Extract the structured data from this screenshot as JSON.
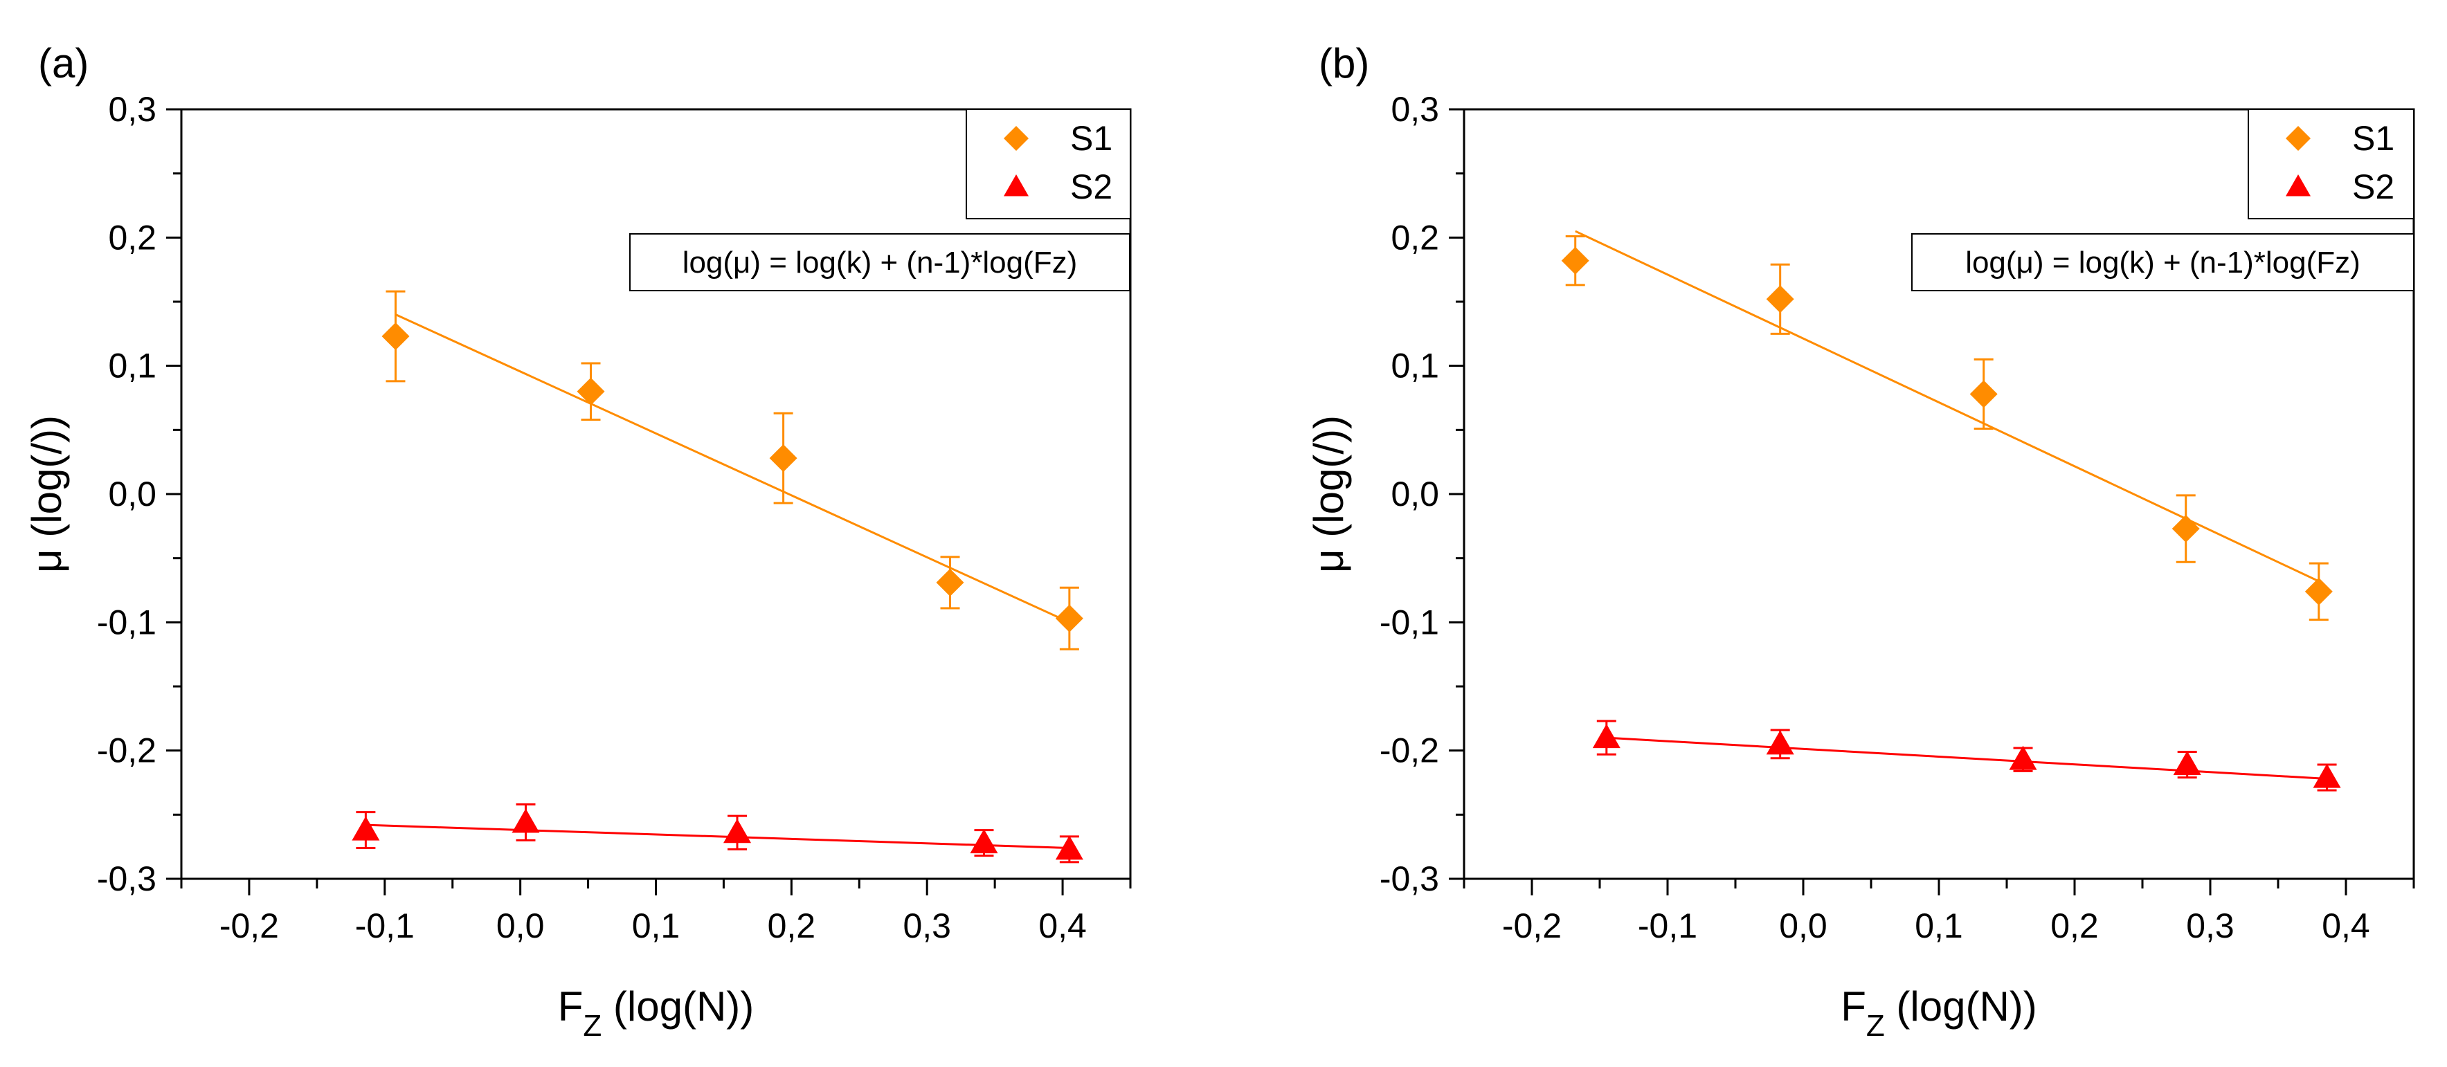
{
  "figure": {
    "panels": [
      "(a)",
      "(b)"
    ]
  },
  "chart_data": [
    {
      "type": "scatter",
      "panel_label": "(a)",
      "title": "",
      "xlabel_main": "F",
      "xlabel_sub": "Z",
      "xlabel_rest": " (log(N))",
      "ylabel": "μ (log(/))",
      "xlim": [
        -0.25,
        0.45
      ],
      "ylim": [
        -0.3,
        0.3
      ],
      "xticks": [
        -0.2,
        -0.1,
        0.0,
        0.1,
        0.2,
        0.3,
        0.4
      ],
      "yticks": [
        -0.3,
        -0.2,
        -0.1,
        0.0,
        0.1,
        0.2,
        0.3
      ],
      "xtick_labels": [
        "-0,2",
        "-0,1",
        "0,0",
        "0,1",
        "0,2",
        "0,3",
        "0,4"
      ],
      "ytick_labels": [
        "-0,3",
        "-0,2",
        "-0,1",
        "0,0",
        "0,1",
        "0,2",
        "0,3"
      ],
      "legend_position": "top-right",
      "equation": "log(μ) = log(k) + (n-1)*log(Fz)",
      "series": [
        {
          "name": "S1",
          "marker": "diamond",
          "color": "#FF8C00",
          "points": [
            {
              "x": -0.092,
              "y": 0.123,
              "err": 0.035
            },
            {
              "x": 0.052,
              "y": 0.08,
              "err": 0.022
            },
            {
              "x": 0.194,
              "y": 0.028,
              "err": 0.035
            },
            {
              "x": 0.317,
              "y": -0.069,
              "err": 0.02
            },
            {
              "x": 0.405,
              "y": -0.097,
              "err": 0.024
            }
          ],
          "fit": {
            "x": [
              -0.092,
              0.405
            ],
            "y": [
              0.14,
              -0.1
            ]
          }
        },
        {
          "name": "S2",
          "marker": "triangle",
          "color": "#FF0000",
          "points": [
            {
              "x": -0.114,
              "y": -0.262,
              "err": 0.014
            },
            {
              "x": 0.004,
              "y": -0.256,
              "err": 0.014
            },
            {
              "x": 0.16,
              "y": -0.264,
              "err": 0.013
            },
            {
              "x": 0.342,
              "y": -0.272,
              "err": 0.01
            },
            {
              "x": 0.405,
              "y": -0.277,
              "err": 0.01
            }
          ],
          "fit": {
            "x": [
              -0.114,
              0.405
            ],
            "y": [
              -0.258,
              -0.276
            ]
          }
        }
      ]
    },
    {
      "type": "scatter",
      "panel_label": "(b)",
      "title": "",
      "xlabel_main": "F",
      "xlabel_sub": "Z",
      "xlabel_rest": " (log(N))",
      "ylabel": "μ (log(/))",
      "xlim": [
        -0.25,
        0.45
      ],
      "ylim": [
        -0.3,
        0.3
      ],
      "xticks": [
        -0.2,
        -0.1,
        0.0,
        0.1,
        0.2,
        0.3,
        0.4
      ],
      "yticks": [
        -0.3,
        -0.2,
        -0.1,
        0.0,
        0.1,
        0.2,
        0.3
      ],
      "xtick_labels": [
        "-0,2",
        "-0,1",
        "0,0",
        "0,1",
        "0,2",
        "0,3",
        "0,4"
      ],
      "ytick_labels": [
        "-0,3",
        "-0,2",
        "-0,1",
        "0,0",
        "0,1",
        "0,2",
        "0,3"
      ],
      "legend_position": "top-right",
      "equation": "log(μ) = log(k) + (n-1)*log(Fz)",
      "series": [
        {
          "name": "S1",
          "marker": "diamond",
          "color": "#FF8C00",
          "points": [
            {
              "x": -0.168,
              "y": 0.182,
              "err": 0.019
            },
            {
              "x": -0.017,
              "y": 0.152,
              "err": 0.027
            },
            {
              "x": 0.133,
              "y": 0.078,
              "err": 0.027
            },
            {
              "x": 0.282,
              "y": -0.027,
              "err": 0.026
            },
            {
              "x": 0.38,
              "y": -0.076,
              "err": 0.022
            }
          ],
          "fit": {
            "x": [
              -0.168,
              0.38
            ],
            "y": [
              0.205,
              -0.068
            ]
          }
        },
        {
          "name": "S2",
          "marker": "triangle",
          "color": "#FF0000",
          "points": [
            {
              "x": -0.145,
              "y": -0.19,
              "err": 0.013
            },
            {
              "x": -0.017,
              "y": -0.195,
              "err": 0.011
            },
            {
              "x": 0.162,
              "y": -0.207,
              "err": 0.009
            },
            {
              "x": 0.283,
              "y": -0.211,
              "err": 0.01
            },
            {
              "x": 0.386,
              "y": -0.221,
              "err": 0.01
            }
          ],
          "fit": {
            "x": [
              -0.145,
              0.386
            ],
            "y": [
              -0.19,
              -0.222
            ]
          }
        }
      ]
    }
  ]
}
